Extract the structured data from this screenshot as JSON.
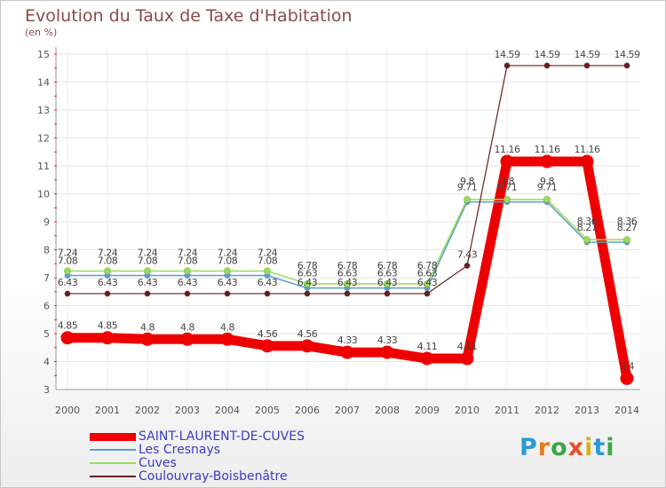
{
  "title": "Evolution du Taux de Taxe d'Habitation",
  "subtitle": "(en %)",
  "brand": {
    "text": "Proxiti",
    "colors": [
      "#2a9ad8",
      "#e87a1e",
      "#3aa846",
      "#e84d2a",
      "#d4b020",
      "#2a9ad8",
      "#3aa846"
    ]
  },
  "chart_data": {
    "type": "line",
    "x": [
      2000,
      2001,
      2002,
      2003,
      2004,
      2005,
      2006,
      2007,
      2008,
      2009,
      2010,
      2011,
      2012,
      2013,
      2014
    ],
    "ylim": [
      3,
      15
    ],
    "yticks": [
      3,
      4,
      5,
      6,
      7,
      8,
      9,
      10,
      11,
      12,
      13,
      14,
      15
    ],
    "grid": true,
    "legend_position": "bottom-left",
    "series": [
      {
        "name": "SAINT-LAURENT-DE-CUVES",
        "color": "#ee0000",
        "values": [
          4.85,
          4.85,
          4.8,
          4.8,
          4.8,
          4.56,
          4.56,
          4.33,
          4.33,
          4.11,
          4.11,
          11.16,
          11.16,
          11.16,
          3.4
        ],
        "labels": [
          "4.85",
          "4.85",
          "4.8",
          "4.8",
          "4.8",
          "4.56",
          "4.56",
          "4.33",
          "4.33",
          "4.11",
          "4.11",
          "11.16",
          "11.16",
          "11.16",
          "3.4"
        ]
      },
      {
        "name": "Les Cresnays",
        "color": "#5b9fd0",
        "values": [
          7.08,
          7.08,
          7.08,
          7.08,
          7.08,
          7.08,
          6.63,
          6.63,
          6.63,
          6.63,
          9.71,
          9.71,
          9.71,
          8.27,
          8.27
        ],
        "labels": [
          "7.08",
          "7.08",
          "7.08",
          "7.08",
          "7.08",
          "7.08",
          "6.63",
          "6.63",
          "6.63",
          "6.63",
          "9.71",
          "9.71",
          "9.71",
          "8.27",
          "8.27"
        ]
      },
      {
        "name": "Cuves",
        "color": "#99dd55",
        "values": [
          7.24,
          7.24,
          7.24,
          7.24,
          7.24,
          7.24,
          6.78,
          6.78,
          6.78,
          6.78,
          9.8,
          9.8,
          9.8,
          8.36,
          8.36
        ],
        "labels": [
          "7.24",
          "7.24",
          "7.24",
          "7.24",
          "7.24",
          "7.24",
          "6.78",
          "6.78",
          "6.78",
          "6.78",
          "9.8",
          "9.8",
          "9.8",
          "8.36",
          "8.36"
        ]
      },
      {
        "name": "Coulouvray-Boisbenâtre",
        "color": "#6b1c1c",
        "values": [
          6.43,
          6.43,
          6.43,
          6.43,
          6.43,
          6.43,
          6.43,
          6.43,
          6.43,
          6.43,
          7.43,
          14.59,
          14.59,
          14.59,
          14.59
        ],
        "labels": [
          "6.43",
          "6.43",
          "6.43",
          "6.43",
          "6.43",
          "6.43",
          "6.43",
          "6.43",
          "6.43",
          "6.43",
          "7.43",
          "14.59",
          "14.59",
          "14.59",
          "14.59"
        ]
      }
    ]
  }
}
